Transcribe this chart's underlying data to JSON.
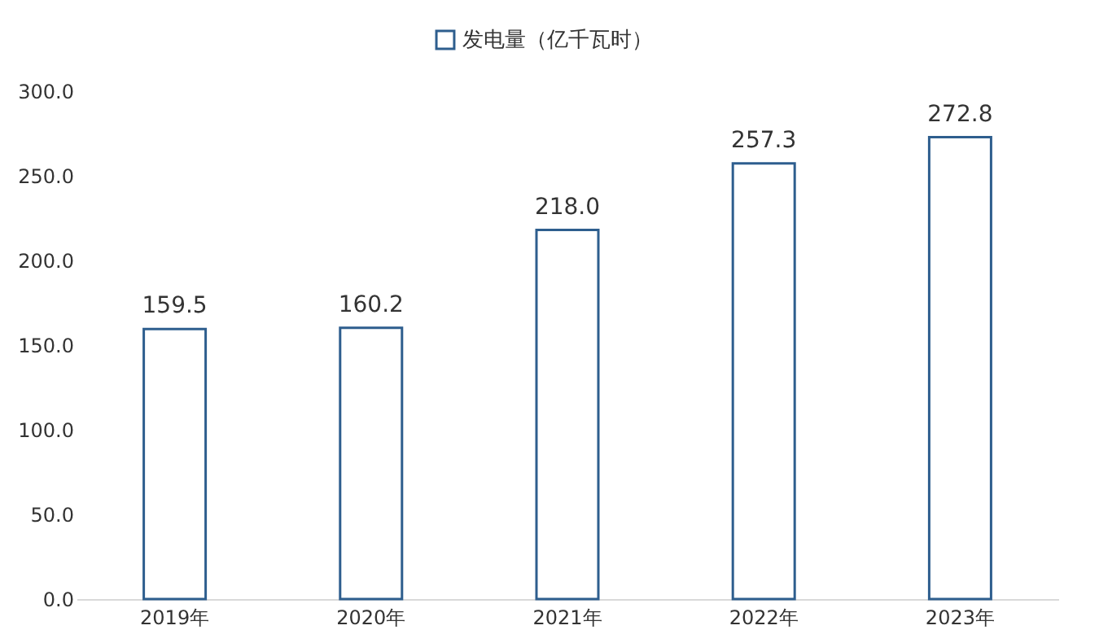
{
  "chart_data": {
    "type": "bar",
    "categories": [
      "2019年",
      "2020年",
      "2021年",
      "2022年",
      "2023年"
    ],
    "series": [
      {
        "name": "发电量（亿千瓦时）",
        "color": "#2e5e8e",
        "values": [
          159.5,
          160.2,
          218.0,
          257.3,
          272.8
        ],
        "value_labels": [
          "159.5",
          "160.2",
          "218.0",
          "257.3",
          "272.8"
        ]
      }
    ],
    "ylim": [
      0,
      300
    ],
    "yticks": [
      {
        "value": 0,
        "label": "0.0"
      },
      {
        "value": 50,
        "label": "50.0"
      },
      {
        "value": 100,
        "label": "100.0"
      },
      {
        "value": 150,
        "label": "150.0"
      },
      {
        "value": 200,
        "label": "200.0"
      },
      {
        "value": 250,
        "label": "250.0"
      },
      {
        "value": 300,
        "label": "300.0"
      }
    ],
    "grid": false,
    "legend": "top"
  }
}
